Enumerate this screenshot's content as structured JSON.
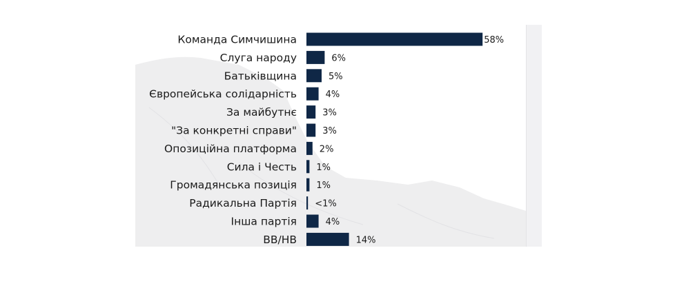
{
  "colors": {
    "bar": "#0f2746",
    "map": "#eeeeef",
    "text": "#1a1a1a",
    "strip": "#f1f1f3"
  },
  "chart_data": {
    "type": "bar",
    "orientation": "horizontal",
    "categories": [
      "Команда Симчишина",
      "Слуга народу",
      "Батьківщина",
      "Європейська солідарність",
      "За майбутнє",
      "\"За конкретні справи\"",
      "Опозиційна платформа",
      "Сила і Честь",
      "Громадянська позиція",
      "Радикальна Партія",
      "Інша партія",
      "ВВ/НВ"
    ],
    "values": [
      58,
      6,
      5,
      4,
      3,
      3,
      2,
      1,
      1,
      0.5,
      4,
      14
    ],
    "value_labels": [
      "58%",
      "6%",
      "5%",
      "4%",
      "3%",
      "3%",
      "2%",
      "1%",
      "1%",
      "<1%",
      "4%",
      "14%"
    ],
    "title": "",
    "xlabel": "",
    "ylabel": "",
    "grid": false
  }
}
